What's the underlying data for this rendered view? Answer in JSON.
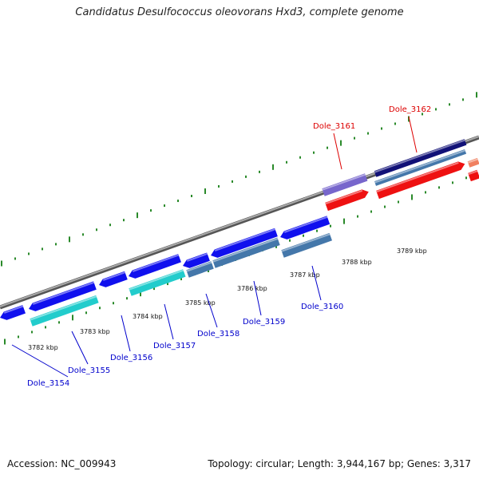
{
  "title": "Candidatus Desulfococcus oleovorans Hxd3, complete genome",
  "footer": {
    "accession": "Accession: NC_009943",
    "topology": "Topology: circular; Length: 3,944,167 bp; Genes: 3,317"
  },
  "colors": {
    "forward_gene": "#1010ee",
    "reverse_gene": "#4477aa",
    "cyan_gene": "#22cccc",
    "red_gene": "#ee1111",
    "purple_gene": "#7766cc",
    "navy_gene": "#111177",
    "backbone": "#888888",
    "tick": "#2a8a2a",
    "blue_label": "#0000cc",
    "red_label": "#dd0000"
  },
  "kbp_labels": [
    {
      "text": "3782 kbp"
    },
    {
      "text": "3783 kbp"
    },
    {
      "text": "3784 kbp"
    },
    {
      "text": "3785 kbp"
    },
    {
      "text": "3786 kbp"
    },
    {
      "text": "3787 kbp"
    },
    {
      "text": "3788 kbp"
    },
    {
      "text": "3789 kbp"
    }
  ],
  "gene_labels": [
    {
      "text": "Dole_3154",
      "color": "blue"
    },
    {
      "text": "Dole_3155",
      "color": "blue"
    },
    {
      "text": "Dole_3156",
      "color": "blue"
    },
    {
      "text": "Dole_3157",
      "color": "blue"
    },
    {
      "text": "Dole_3158",
      "color": "blue"
    },
    {
      "text": "Dole_3159",
      "color": "blue"
    },
    {
      "text": "Dole_3160",
      "color": "blue"
    },
    {
      "text": "Dole_3161",
      "color": "red"
    },
    {
      "text": "Dole_3162",
      "color": "red"
    }
  ]
}
